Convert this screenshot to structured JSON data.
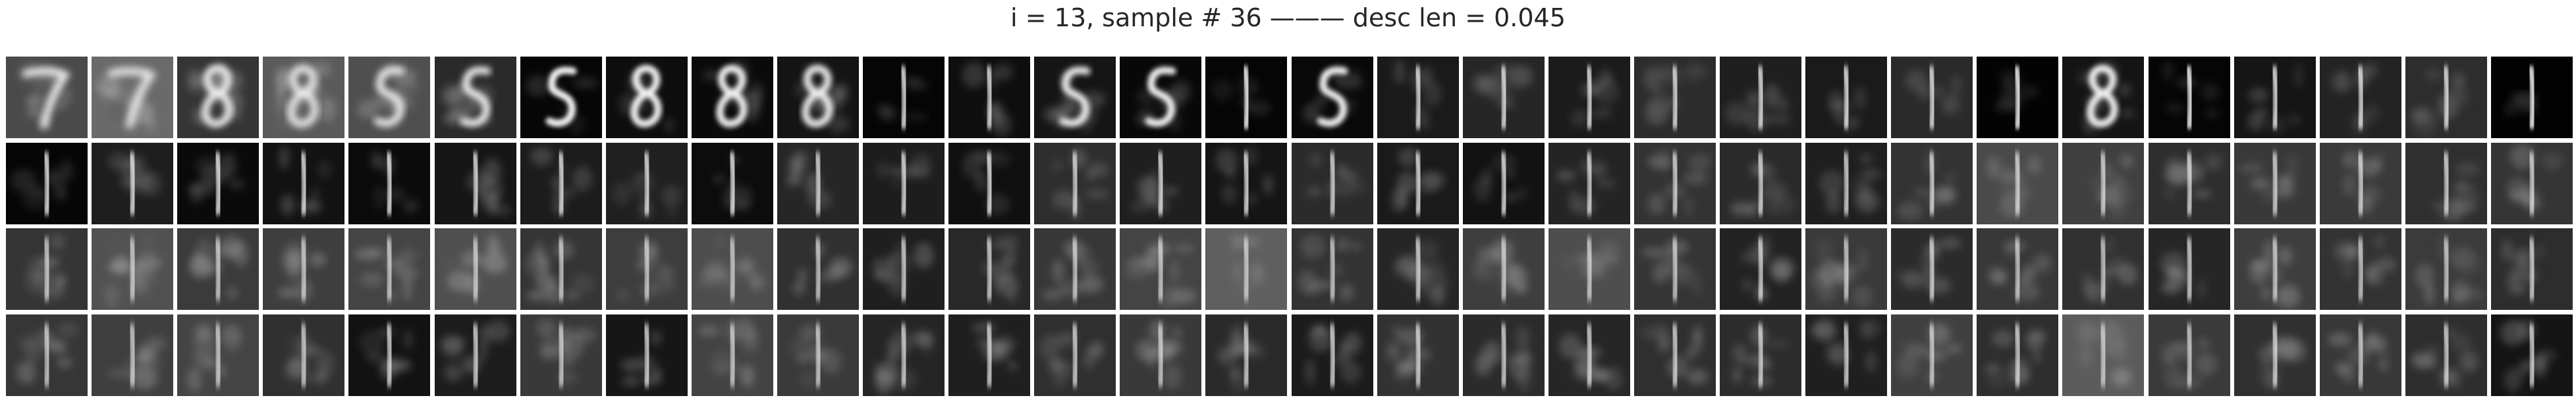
{
  "title": "i = 13, sample # 36 ——— desc len = 0.045",
  "grid": {
    "rows": 4,
    "cols": 30,
    "tiles": [
      [
        {
          "digit": "7",
          "bg": "#4a4a4a",
          "noise": 0.9
        },
        {
          "digit": "7",
          "bg": "#6a6a6a",
          "noise": 0.95
        },
        {
          "digit": "8",
          "bg": "#353535",
          "noise": 0.7
        },
        {
          "digit": "8",
          "bg": "#5a5a5a",
          "noise": 0.85
        },
        {
          "digit": "5",
          "bg": "#4f4f4f",
          "noise": 0.8
        },
        {
          "digit": "5",
          "bg": "#2a2a2a",
          "noise": 0.6
        },
        {
          "digit": "5",
          "bg": "#060606",
          "noise": 0.15
        },
        {
          "digit": "8",
          "bg": "#0d0d0d",
          "noise": 0.25
        },
        {
          "digit": "8",
          "bg": "#0a0a0a",
          "noise": 0.3
        },
        {
          "digit": "8",
          "bg": "#141414",
          "noise": 0.5
        },
        {
          "digit": "1",
          "bg": "#050505",
          "noise": 0.2
        },
        {
          "digit": "1",
          "bg": "#0e0e0e",
          "noise": 0.3
        },
        {
          "digit": "5",
          "bg": "#151515",
          "noise": 0.45
        },
        {
          "digit": "5",
          "bg": "#080808",
          "noise": 0.2
        },
        {
          "digit": "1",
          "bg": "#050505",
          "noise": 0.1
        },
        {
          "digit": "5",
          "bg": "#090909",
          "noise": 0.2
        },
        {
          "digit": "1",
          "bg": "#1a1a1a",
          "noise": 0.3
        },
        {
          "digit": "1",
          "bg": "#262626",
          "noise": 0.35
        },
        {
          "digit": "1",
          "bg": "#1b1b1b",
          "noise": 0.3
        },
        {
          "digit": "1",
          "bg": "#2c2c2c",
          "noise": 0.35
        },
        {
          "digit": "1",
          "bg": "#1f1f1f",
          "noise": 0.3
        },
        {
          "digit": "1",
          "bg": "#1a1a1a",
          "noise": 0.25
        },
        {
          "digit": "1",
          "bg": "#2a2a2a",
          "noise": 0.3
        },
        {
          "digit": "1",
          "bg": "#030303",
          "noise": 0.1
        },
        {
          "digit": "8",
          "bg": "#141414",
          "noise": 0.3
        },
        {
          "digit": "1",
          "bg": "#050505",
          "noise": 0.1
        },
        {
          "digit": "1",
          "bg": "#151515",
          "noise": 0.25
        },
        {
          "digit": "1",
          "bg": "#232323",
          "noise": 0.3
        },
        {
          "digit": "1",
          "bg": "#2d2d2d",
          "noise": 0.35
        },
        {
          "digit": "1",
          "bg": "#020202",
          "noise": 0.05
        }
      ],
      [
        {
          "digit": "1",
          "bg": "#060606",
          "noise": 0.2
        },
        {
          "digit": "1",
          "bg": "#1e1e1e",
          "noise": 0.35
        },
        {
          "digit": "1",
          "bg": "#0a0a0a",
          "noise": 0.2
        },
        {
          "digit": "1",
          "bg": "#121212",
          "noise": 0.3
        },
        {
          "digit": "1",
          "bg": "#0b0b0b",
          "noise": 0.2
        },
        {
          "digit": "1",
          "bg": "#161616",
          "noise": 0.3
        },
        {
          "digit": "1",
          "bg": "#1c1c1c",
          "noise": 0.35
        },
        {
          "digit": "1",
          "bg": "#202020",
          "noise": 0.35
        },
        {
          "digit": "1",
          "bg": "#0c0c0c",
          "noise": 0.2
        },
        {
          "digit": "1",
          "bg": "#262626",
          "noise": 0.4
        },
        {
          "digit": "1",
          "bg": "#1d1d1d",
          "noise": 0.35
        },
        {
          "digit": "1",
          "bg": "#101010",
          "noise": 0.25
        },
        {
          "digit": "1",
          "bg": "#2e2e2e",
          "noise": 0.4
        },
        {
          "digit": "1",
          "bg": "#1f1f1f",
          "noise": 0.35
        },
        {
          "digit": "1",
          "bg": "#151515",
          "noise": 0.3
        },
        {
          "digit": "1",
          "bg": "#2b2b2b",
          "noise": 0.4
        },
        {
          "digit": "1",
          "bg": "#1a1a1a",
          "noise": 0.35
        },
        {
          "digit": "1",
          "bg": "#121212",
          "noise": 0.3
        },
        {
          "digit": "1",
          "bg": "#242424",
          "noise": 0.4
        },
        {
          "digit": "1",
          "bg": "#333333",
          "noise": 0.45
        },
        {
          "digit": "1",
          "bg": "#2a2a2a",
          "noise": 0.45
        },
        {
          "digit": "1",
          "bg": "#1f1f1f",
          "noise": 0.4
        },
        {
          "digit": "1",
          "bg": "#333333",
          "noise": 0.45
        },
        {
          "digit": "1",
          "bg": "#4a4a4a",
          "noise": 0.5
        },
        {
          "digit": "1",
          "bg": "#404040",
          "noise": 0.5
        },
        {
          "digit": "1",
          "bg": "#2e2e2e",
          "noise": 0.45
        },
        {
          "digit": "1",
          "bg": "#393939",
          "noise": 0.5
        },
        {
          "digit": "1",
          "bg": "#3a3a3a",
          "noise": 0.5
        },
        {
          "digit": "1",
          "bg": "#2f2f2f",
          "noise": 0.45
        },
        {
          "digit": "1",
          "bg": "#353535",
          "noise": 0.5
        }
      ],
      [
        {
          "digit": "1",
          "bg": "#353535",
          "noise": 0.6
        },
        {
          "digit": "1",
          "bg": "#515151",
          "noise": 0.65
        },
        {
          "digit": "1",
          "bg": "#3b3b3b",
          "noise": 0.6
        },
        {
          "digit": "1",
          "bg": "#3e3e3e",
          "noise": 0.6
        },
        {
          "digit": "1",
          "bg": "#444444",
          "noise": 0.6
        },
        {
          "digit": "1",
          "bg": "#4f4f4f",
          "noise": 0.65
        },
        {
          "digit": "1",
          "bg": "#353535",
          "noise": 0.6
        },
        {
          "digit": "1",
          "bg": "#3d3d3d",
          "noise": 0.6
        },
        {
          "digit": "1",
          "bg": "#4d4d4d",
          "noise": 0.65
        },
        {
          "digit": "1",
          "bg": "#303030",
          "noise": 0.55
        },
        {
          "digit": "1",
          "bg": "#1f1f1f",
          "noise": 0.5
        },
        {
          "digit": "1",
          "bg": "#282828",
          "noise": 0.5
        },
        {
          "digit": "1",
          "bg": "#373737",
          "noise": 0.55
        },
        {
          "digit": "1",
          "bg": "#444444",
          "noise": 0.6
        },
        {
          "digit": "1",
          "bg": "#5f5f5f",
          "noise": 0.65
        },
        {
          "digit": "1",
          "bg": "#333333",
          "noise": 0.55
        },
        {
          "digit": "1",
          "bg": "#262626",
          "noise": 0.5
        },
        {
          "digit": "1",
          "bg": "#3e3e3e",
          "noise": 0.55
        },
        {
          "digit": "1",
          "bg": "#4e4e4e",
          "noise": 0.6
        },
        {
          "digit": "1",
          "bg": "#353535",
          "noise": 0.55
        },
        {
          "digit": "1",
          "bg": "#222222",
          "noise": 0.5
        },
        {
          "digit": "1",
          "bg": "#3a3a3a",
          "noise": 0.55
        },
        {
          "digit": "1",
          "bg": "#2b2b2b",
          "noise": 0.5
        },
        {
          "digit": "1",
          "bg": "#383838",
          "noise": 0.55
        },
        {
          "digit": "1",
          "bg": "#313131",
          "noise": 0.55
        },
        {
          "digit": "1",
          "bg": "#262626",
          "noise": 0.5
        },
        {
          "digit": "1",
          "bg": "#3e3e3e",
          "noise": 0.55
        },
        {
          "digit": "1",
          "bg": "#333333",
          "noise": 0.55
        },
        {
          "digit": "1",
          "bg": "#3b3b3b",
          "noise": 0.55
        },
        {
          "digit": "1",
          "bg": "#2d2d2d",
          "noise": 0.5
        }
      ],
      [
        {
          "digit": "1",
          "bg": "#363636",
          "noise": 0.6
        },
        {
          "digit": "1",
          "bg": "#3f3f3f",
          "noise": 0.6
        },
        {
          "digit": "1",
          "bg": "#444444",
          "noise": 0.6
        },
        {
          "digit": "1",
          "bg": "#303030",
          "noise": 0.55
        },
        {
          "digit": "1",
          "bg": "#121212",
          "noise": 0.4
        },
        {
          "digit": "1",
          "bg": "#1c1c1c",
          "noise": 0.45
        },
        {
          "digit": "1",
          "bg": "#393939",
          "noise": 0.55
        },
        {
          "digit": "1",
          "bg": "#161616",
          "noise": 0.4
        },
        {
          "digit": "1",
          "bg": "#434343",
          "noise": 0.6
        },
        {
          "digit": "1",
          "bg": "#3a3a3a",
          "noise": 0.55
        },
        {
          "digit": "1",
          "bg": "#252525",
          "noise": 0.5
        },
        {
          "digit": "1",
          "bg": "#1f1f1f",
          "noise": 0.45
        },
        {
          "digit": "1",
          "bg": "#2f2f2f",
          "noise": 0.5
        },
        {
          "digit": "1",
          "bg": "#393939",
          "noise": 0.55
        },
        {
          "digit": "1",
          "bg": "#2a2a2a",
          "noise": 0.5
        },
        {
          "digit": "1",
          "bg": "#1b1b1b",
          "noise": 0.45
        },
        {
          "digit": "1",
          "bg": "#323232",
          "noise": 0.5
        },
        {
          "digit": "1",
          "bg": "#2b2b2b",
          "noise": 0.5
        },
        {
          "digit": "1",
          "bg": "#262626",
          "noise": 0.5
        },
        {
          "digit": "1",
          "bg": "#2f2f2f",
          "noise": 0.5
        },
        {
          "digit": "1",
          "bg": "#2c2c2c",
          "noise": 0.5
        },
        {
          "digit": "1",
          "bg": "#1f1f1f",
          "noise": 0.45
        },
        {
          "digit": "1",
          "bg": "#404040",
          "noise": 0.55
        },
        {
          "digit": "1",
          "bg": "#2e2e2e",
          "noise": 0.5
        },
        {
          "digit": "1",
          "bg": "#5c5c5c",
          "noise": 0.65
        },
        {
          "digit": "1",
          "bg": "#3a3a3a",
          "noise": 0.55
        },
        {
          "digit": "1",
          "bg": "#303030",
          "noise": 0.5
        },
        {
          "digit": "1",
          "bg": "#383838",
          "noise": 0.55
        },
        {
          "digit": "1",
          "bg": "#2e2e2e",
          "noise": 0.5
        },
        {
          "digit": "1",
          "bg": "#141414",
          "noise": 0.4
        }
      ]
    ]
  }
}
